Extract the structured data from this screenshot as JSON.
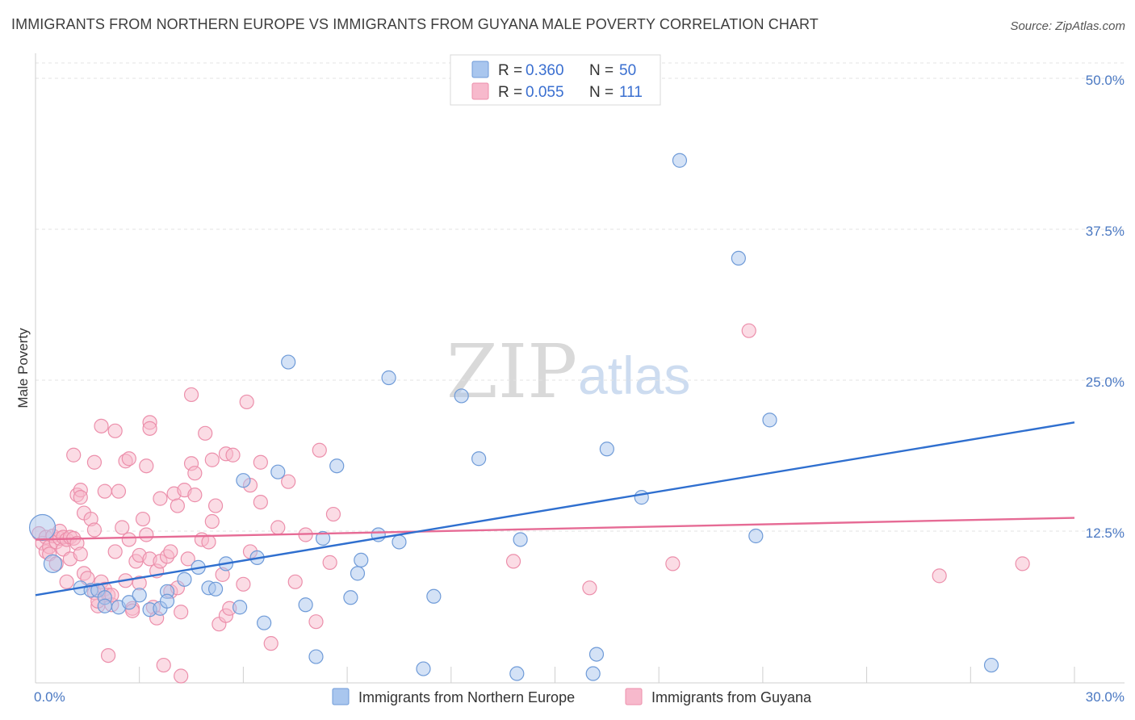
{
  "title": "IMMIGRANTS FROM NORTHERN EUROPE VS IMMIGRANTS FROM GUYANA MALE POVERTY CORRELATION CHART",
  "source": "Source: ZipAtlas.com",
  "watermark": {
    "zip": "ZIP",
    "atlas": "atlas"
  },
  "colors": {
    "blue_fill": "#a9c6ee",
    "blue_stroke": "#6f9bd8",
    "blue_line": "#2f6fcf",
    "pink_fill": "#f7b9cc",
    "pink_stroke": "#ec8fab",
    "pink_line": "#e66b95",
    "tick_label": "#4a78c2"
  },
  "legend": {
    "rows": [
      {
        "r_label": "R =",
        "r_value": "0.360",
        "n_label": "N =",
        "n_value": "50"
      },
      {
        "r_label": "R =",
        "r_value": "0.055",
        "n_label": "N =",
        "n_value": "111"
      }
    ]
  },
  "bottom_legend": [
    "Immigrants from Northern Europe",
    "Immigrants from Guyana"
  ],
  "chart_data": {
    "type": "scatter",
    "title": "IMMIGRANTS FROM NORTHERN EUROPE VS IMMIGRANTS FROM GUYANA MALE POVERTY CORRELATION CHART",
    "xlabel": "",
    "ylabel": "Male Poverty",
    "xlim": [
      0,
      30
    ],
    "ylim": [
      0,
      50
    ],
    "x_tick_labels": [
      "0.0%",
      "30.0%"
    ],
    "y_ticks": [
      12.5,
      25.0,
      37.5,
      50.0
    ],
    "y_tick_labels": [
      "12.5%",
      "25.0%",
      "37.5%",
      "50.0%"
    ],
    "grid": true,
    "legend_position": "top-center",
    "series": [
      {
        "name": "Immigrants from Northern Europe",
        "trend": {
          "x": [
            0,
            30
          ],
          "y": [
            7.2,
            21.5
          ]
        },
        "points": [
          [
            0.2,
            12.8
          ],
          [
            0.5,
            9.8
          ],
          [
            1.3,
            7.8
          ],
          [
            1.6,
            7.6
          ],
          [
            1.8,
            7.6
          ],
          [
            2.0,
            7.0
          ],
          [
            2.0,
            6.3
          ],
          [
            2.4,
            6.2
          ],
          [
            2.7,
            6.6
          ],
          [
            3.0,
            7.2
          ],
          [
            3.3,
            6.0
          ],
          [
            3.6,
            6.1
          ],
          [
            3.8,
            7.5
          ],
          [
            3.8,
            6.7
          ],
          [
            4.3,
            8.5
          ],
          [
            4.7,
            9.5
          ],
          [
            5.0,
            7.8
          ],
          [
            5.2,
            7.7
          ],
          [
            5.5,
            9.8
          ],
          [
            5.9,
            6.2
          ],
          [
            6.0,
            16.7
          ],
          [
            6.4,
            10.3
          ],
          [
            6.6,
            4.9
          ],
          [
            7.0,
            17.4
          ],
          [
            7.3,
            26.5
          ],
          [
            7.8,
            6.4
          ],
          [
            8.1,
            2.1
          ],
          [
            8.3,
            11.9
          ],
          [
            8.7,
            17.9
          ],
          [
            9.1,
            7.0
          ],
          [
            9.3,
            9.0
          ],
          [
            9.4,
            10.1
          ],
          [
            9.9,
            12.2
          ],
          [
            10.2,
            25.2
          ],
          [
            10.5,
            11.6
          ],
          [
            11.2,
            1.1
          ],
          [
            11.5,
            7.1
          ],
          [
            12.3,
            23.7
          ],
          [
            12.8,
            18.5
          ],
          [
            13.9,
            0.7
          ],
          [
            14.0,
            11.8
          ],
          [
            16.1,
            0.7
          ],
          [
            16.2,
            2.3
          ],
          [
            16.5,
            19.3
          ],
          [
            17.5,
            15.3
          ],
          [
            18.6,
            43.2
          ],
          [
            20.3,
            35.1
          ],
          [
            20.8,
            12.1
          ],
          [
            21.2,
            21.7
          ],
          [
            27.6,
            1.4
          ]
        ]
      },
      {
        "name": "Immigrants from Guyana",
        "trend": {
          "x": [
            0,
            30
          ],
          "y": [
            11.8,
            13.6
          ]
        },
        "points": [
          [
            0.1,
            12.3
          ],
          [
            0.2,
            11.5
          ],
          [
            0.3,
            12.0
          ],
          [
            0.3,
            10.8
          ],
          [
            0.4,
            11.2
          ],
          [
            0.4,
            10.6
          ],
          [
            0.5,
            12.1
          ],
          [
            0.6,
            9.8
          ],
          [
            0.6,
            11.6
          ],
          [
            0.7,
            11.9
          ],
          [
            0.7,
            12.5
          ],
          [
            0.8,
            11.0
          ],
          [
            0.8,
            12.0
          ],
          [
            0.9,
            8.3
          ],
          [
            0.9,
            11.8
          ],
          [
            1.0,
            12.0
          ],
          [
            1.0,
            10.2
          ],
          [
            1.1,
            18.8
          ],
          [
            1.1,
            11.9
          ],
          [
            1.2,
            11.5
          ],
          [
            1.2,
            15.5
          ],
          [
            1.3,
            15.9
          ],
          [
            1.3,
            15.3
          ],
          [
            1.3,
            10.6
          ],
          [
            1.4,
            14.0
          ],
          [
            1.4,
            9.0
          ],
          [
            1.5,
            8.6
          ],
          [
            1.6,
            13.5
          ],
          [
            1.7,
            18.2
          ],
          [
            1.7,
            12.6
          ],
          [
            1.7,
            7.4
          ],
          [
            1.8,
            6.3
          ],
          [
            1.8,
            6.7
          ],
          [
            1.9,
            21.2
          ],
          [
            1.9,
            8.3
          ],
          [
            2.0,
            15.8
          ],
          [
            2.0,
            7.7
          ],
          [
            2.1,
            7.2
          ],
          [
            2.1,
            2.2
          ],
          [
            2.2,
            6.4
          ],
          [
            2.2,
            7.2
          ],
          [
            2.3,
            20.8
          ],
          [
            2.3,
            10.8
          ],
          [
            2.4,
            15.8
          ],
          [
            2.5,
            12.8
          ],
          [
            2.6,
            18.3
          ],
          [
            2.6,
            8.4
          ],
          [
            2.7,
            18.5
          ],
          [
            2.7,
            11.8
          ],
          [
            2.8,
            6.1
          ],
          [
            2.8,
            5.9
          ],
          [
            2.9,
            10.0
          ],
          [
            3.0,
            8.2
          ],
          [
            3.0,
            10.5
          ],
          [
            3.1,
            13.5
          ],
          [
            3.2,
            17.9
          ],
          [
            3.2,
            12.2
          ],
          [
            3.3,
            21.5
          ],
          [
            3.3,
            21.0
          ],
          [
            3.3,
            10.2
          ],
          [
            3.4,
            6.2
          ],
          [
            3.5,
            9.2
          ],
          [
            3.5,
            5.3
          ],
          [
            3.6,
            15.2
          ],
          [
            3.6,
            10.0
          ],
          [
            3.7,
            1.4
          ],
          [
            3.8,
            10.4
          ],
          [
            3.9,
            10.8
          ],
          [
            3.9,
            7.5
          ],
          [
            4.0,
            15.6
          ],
          [
            4.1,
            14.6
          ],
          [
            4.1,
            7.8
          ],
          [
            4.2,
            0.5
          ],
          [
            4.2,
            5.8
          ],
          [
            4.3,
            15.9
          ],
          [
            4.4,
            10.2
          ],
          [
            4.5,
            23.8
          ],
          [
            4.5,
            18.1
          ],
          [
            4.6,
            15.5
          ],
          [
            4.6,
            17.3
          ],
          [
            4.8,
            11.8
          ],
          [
            4.9,
            20.6
          ],
          [
            5.0,
            11.6
          ],
          [
            5.1,
            13.3
          ],
          [
            5.1,
            18.4
          ],
          [
            5.2,
            14.6
          ],
          [
            5.3,
            4.8
          ],
          [
            5.4,
            8.9
          ],
          [
            5.5,
            5.5
          ],
          [
            5.5,
            18.9
          ],
          [
            5.6,
            6.1
          ],
          [
            5.7,
            18.8
          ],
          [
            6.0,
            8.1
          ],
          [
            6.1,
            23.2
          ],
          [
            6.2,
            16.3
          ],
          [
            6.2,
            10.8
          ],
          [
            6.5,
            18.2
          ],
          [
            6.5,
            14.9
          ],
          [
            6.8,
            3.2
          ],
          [
            7.0,
            12.8
          ],
          [
            7.3,
            16.6
          ],
          [
            7.5,
            8.3
          ],
          [
            7.8,
            12.2
          ],
          [
            8.1,
            5.0
          ],
          [
            8.2,
            19.2
          ],
          [
            8.5,
            9.9
          ],
          [
            8.6,
            13.9
          ],
          [
            13.8,
            10.0
          ],
          [
            16.0,
            7.8
          ],
          [
            18.4,
            9.8
          ],
          [
            20.6,
            29.1
          ],
          [
            26.1,
            8.8
          ],
          [
            28.5,
            9.8
          ]
        ]
      }
    ]
  }
}
